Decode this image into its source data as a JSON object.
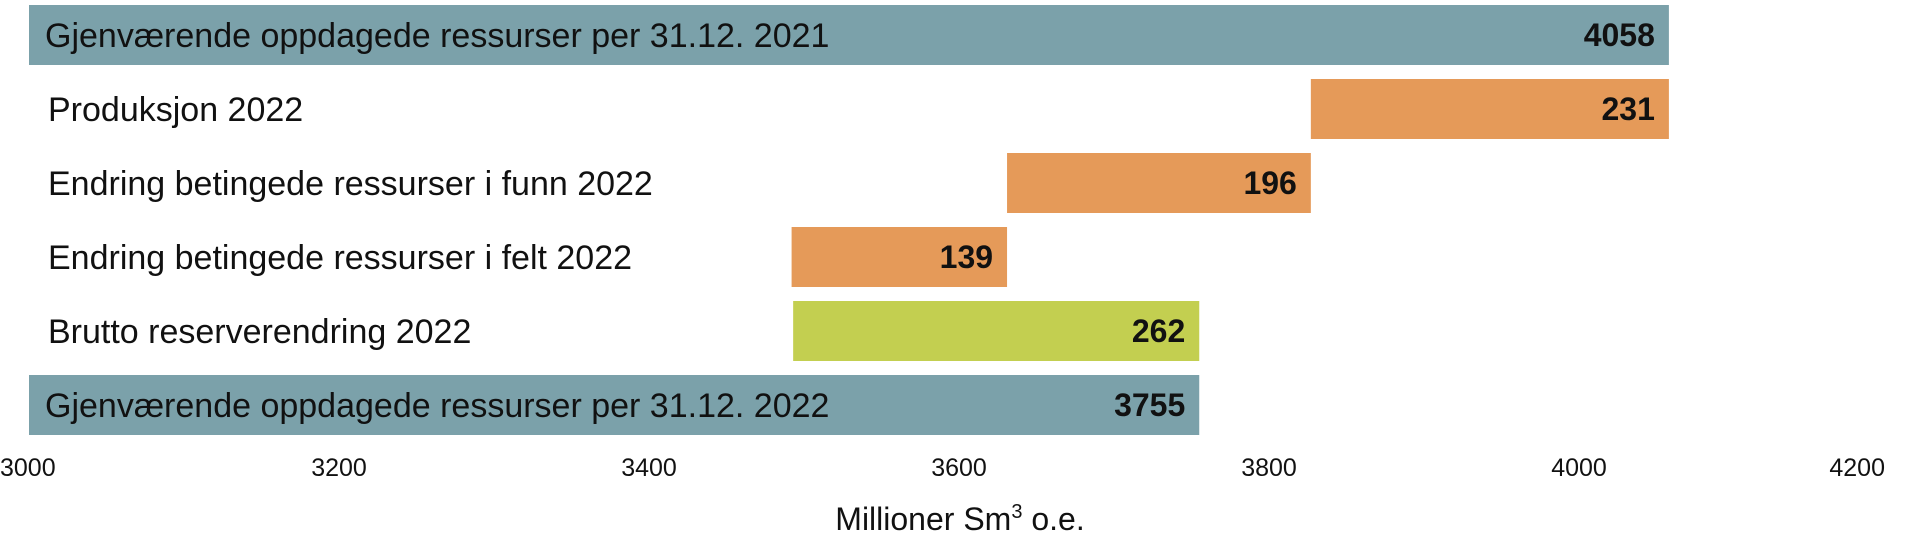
{
  "chart_data": {
    "type": "bar",
    "orientation": "horizontal-waterfall",
    "categories": [
      "Gjenværende oppdagede ressurser per 31.12. 2021",
      "Produksjon 2022",
      "Endring betingede ressurser i funn 2022",
      "Endring betingede ressurser i felt 2022",
      "Brutto reserverendring 2022",
      "Gjenværende oppdagede ressurser per 31.12. 2022"
    ],
    "values": [
      4058,
      231,
      196,
      139,
      262,
      3755
    ],
    "value_labels": [
      "4058",
      "231",
      "196",
      "139",
      "262",
      "3755"
    ],
    "bar_start": [
      3000,
      3827,
      3631,
      3492,
      3493,
      3000
    ],
    "bar_end": [
      4058,
      4058,
      3827,
      3631,
      3755,
      3755
    ],
    "colors": [
      "#7ba1aa",
      "#e59a59",
      "#e59a59",
      "#e59a59",
      "#c3cf50",
      "#7ba1aa"
    ],
    "xlim": [
      3000,
      4200
    ],
    "xticks": [
      3000,
      3200,
      3400,
      3600,
      3800,
      4000,
      4200
    ],
    "xlabel_main": "Millioner Sm",
    "xlabel_sup": "3",
    "xlabel_rest": " o.e.",
    "ylabel": "",
    "grid": false,
    "legend": "none"
  }
}
